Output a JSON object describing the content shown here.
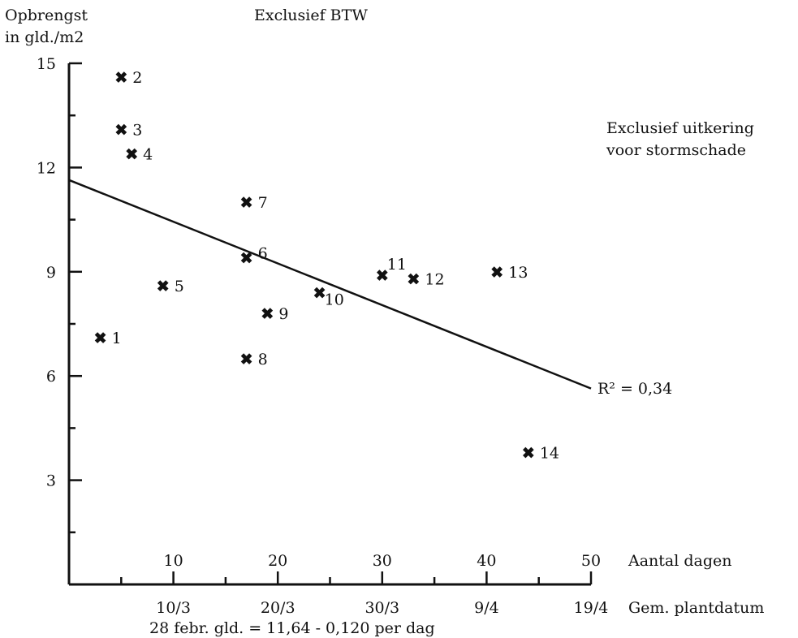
{
  "chart_data": {
    "type": "scatter",
    "title": "Exclusief BTW",
    "note_lines": [
      "Exclusief uitkering",
      "voor stormschade"
    ],
    "ylabel_lines": [
      "Opbrengst",
      "in gld./m2"
    ],
    "xlabel": "Aantal dagen",
    "xlabel2": "Gem. plantdatum",
    "formula": "28 febr. gld. = 11,64 - 0,120 per dag",
    "r2_label": "R² = 0,34",
    "xlim": [
      0,
      50
    ],
    "ylim": [
      0,
      15
    ],
    "x_ticks": [
      {
        "value": 10,
        "label": "10"
      },
      {
        "value": 20,
        "label": "20"
      },
      {
        "value": 30,
        "label": "30"
      },
      {
        "value": 40,
        "label": "40"
      },
      {
        "value": 50,
        "label": "50"
      }
    ],
    "y_ticks": [
      {
        "value": 3,
        "label": "3"
      },
      {
        "value": 6,
        "label": "6"
      },
      {
        "value": 9,
        "label": "9"
      },
      {
        "value": 12,
        "label": "12"
      },
      {
        "value": 15,
        "label": "15"
      }
    ],
    "date_ticks": [
      {
        "value": 10,
        "label": "10/3"
      },
      {
        "value": 20,
        "label": "20/3"
      },
      {
        "value": 30,
        "label": "30/3"
      },
      {
        "value": 40,
        "label": "9/4"
      },
      {
        "value": 50,
        "label": "19/4"
      }
    ],
    "regression": {
      "intercept": 11.64,
      "slope": -0.12,
      "x_range": [
        0,
        50
      ]
    },
    "marker": "✖",
    "points": [
      {
        "id": "1",
        "x": 3,
        "y": 7.1
      },
      {
        "id": "2",
        "x": 5,
        "y": 14.6
      },
      {
        "id": "3",
        "x": 5,
        "y": 13.1
      },
      {
        "id": "4",
        "x": 6,
        "y": 12.4
      },
      {
        "id": "5",
        "x": 9,
        "y": 8.6
      },
      {
        "id": "6",
        "x": 17,
        "y": 9.4
      },
      {
        "id": "7",
        "x": 17,
        "y": 11.0
      },
      {
        "id": "8",
        "x": 17,
        "y": 6.5
      },
      {
        "id": "9",
        "x": 19,
        "y": 7.8
      },
      {
        "id": "10",
        "x": 24,
        "y": 8.4
      },
      {
        "id": "11",
        "x": 30,
        "y": 8.9
      },
      {
        "id": "12",
        "x": 33,
        "y": 8.8
      },
      {
        "id": "13",
        "x": 41,
        "y": 9.0
      },
      {
        "id": "14",
        "x": 44,
        "y": 3.8
      }
    ]
  }
}
